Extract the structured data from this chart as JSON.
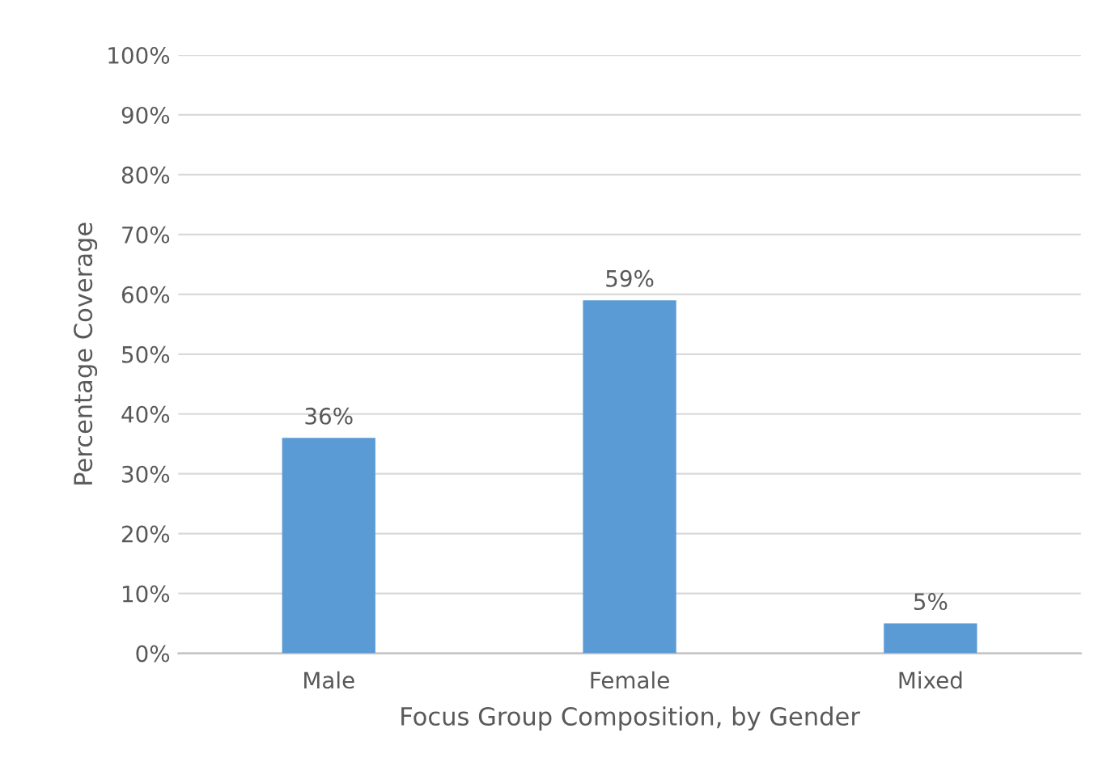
{
  "chart_data": {
    "type": "bar",
    "xlabel": "Focus Group Composition, by Gender",
    "ylabel": "Percentage Coverage",
    "categories": [
      "Male",
      "Female",
      "Mixed"
    ],
    "values": [
      36,
      59,
      5
    ],
    "value_labels": [
      "36%",
      "59%",
      "5%"
    ],
    "color": "#5b9bd5",
    "ylim": [
      0,
      100
    ],
    "yticks": [
      {
        "value": 0,
        "label": "0%"
      },
      {
        "value": 10,
        "label": "10%"
      },
      {
        "value": 20,
        "label": "20%"
      },
      {
        "value": 30,
        "label": "30%"
      },
      {
        "value": 40,
        "label": "40%"
      },
      {
        "value": 50,
        "label": "50%"
      },
      {
        "value": 60,
        "label": "60%"
      },
      {
        "value": 70,
        "label": "70%"
      },
      {
        "value": 80,
        "label": "80%"
      },
      {
        "value": 90,
        "label": "90%"
      },
      {
        "value": 100,
        "label": "100%"
      }
    ],
    "grid": "y",
    "legend": false
  }
}
